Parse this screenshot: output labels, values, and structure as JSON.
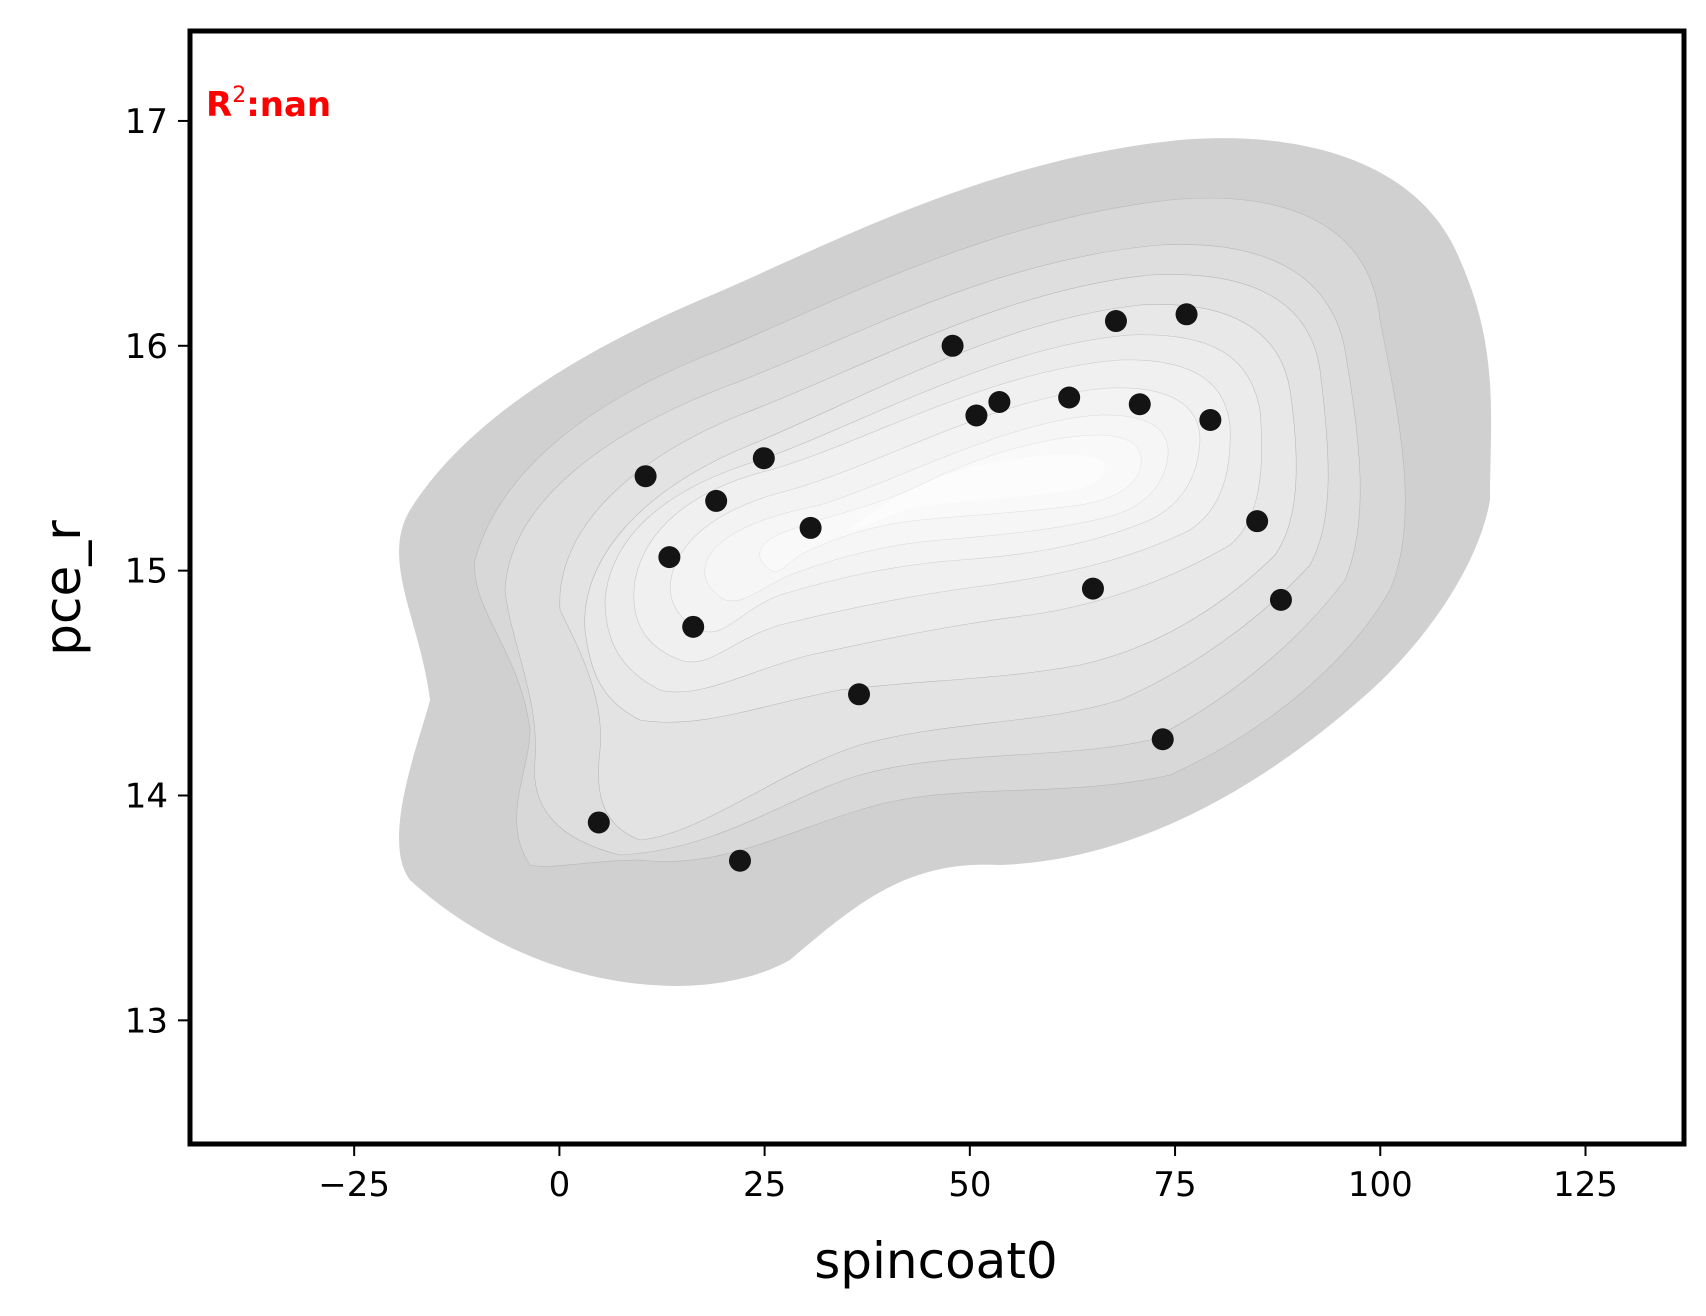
{
  "chart_data": {
    "type": "scatter",
    "title": "",
    "xlabel": "spincoat0",
    "ylabel": "pce_r",
    "xlim": [
      -45,
      137
    ],
    "ylim": [
      12.45,
      17.4
    ],
    "xticks": [
      -25,
      0,
      25,
      50,
      75,
      100,
      125
    ],
    "xtick_labels": [
      "−25",
      "0",
      "25",
      "50",
      "75",
      "100",
      "125"
    ],
    "yticks": [
      13,
      14,
      15,
      16,
      17
    ],
    "ytick_labels": [
      "13",
      "14",
      "15",
      "16",
      "17"
    ],
    "grid": false,
    "background": "kde-density-contours",
    "annotation": {
      "label": "R",
      "sup": "2",
      "value": ":nan",
      "color": "#ff0000"
    },
    "points": [
      {
        "x": 4.8,
        "y": 13.88
      },
      {
        "x": 10.5,
        "y": 15.42
      },
      {
        "x": 13.4,
        "y": 15.06
      },
      {
        "x": 16.3,
        "y": 14.75
      },
      {
        "x": 19.1,
        "y": 15.31
      },
      {
        "x": 22.0,
        "y": 13.71
      },
      {
        "x": 24.9,
        "y": 15.5
      },
      {
        "x": 30.6,
        "y": 15.19
      },
      {
        "x": 36.5,
        "y": 14.45
      },
      {
        "x": 47.9,
        "y": 16.0
      },
      {
        "x": 50.8,
        "y": 15.69
      },
      {
        "x": 53.6,
        "y": 15.75
      },
      {
        "x": 62.1,
        "y": 15.77
      },
      {
        "x": 65.0,
        "y": 14.92
      },
      {
        "x": 67.8,
        "y": 16.11
      },
      {
        "x": 70.7,
        "y": 15.74
      },
      {
        "x": 73.5,
        "y": 14.25
      },
      {
        "x": 76.4,
        "y": 16.14
      },
      {
        "x": 79.3,
        "y": 15.67
      },
      {
        "x": 85.0,
        "y": 15.22
      },
      {
        "x": 87.9,
        "y": 14.87
      }
    ]
  }
}
